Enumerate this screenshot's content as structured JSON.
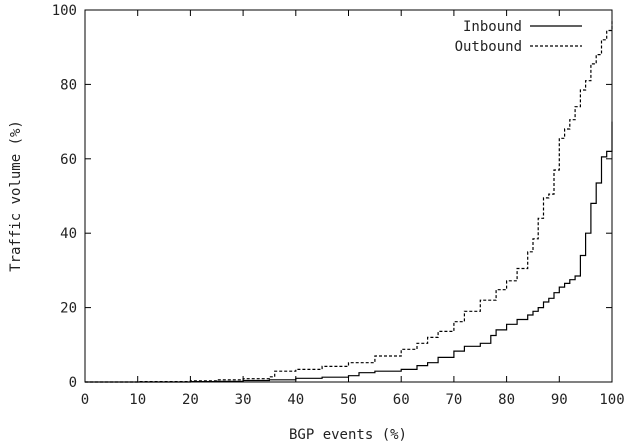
{
  "chart_data": {
    "type": "line",
    "title": "",
    "xlabel": "BGP events (%)",
    "ylabel": "Traffic volume (%)",
    "xlim": [
      0,
      100
    ],
    "ylim": [
      0,
      100
    ],
    "x_ticks": [
      "0",
      "10",
      "20",
      "30",
      "40",
      "50",
      "60",
      "70",
      "80",
      "90",
      "100"
    ],
    "y_ticks": [
      "0",
      "20",
      "40",
      "60",
      "80",
      "100"
    ],
    "legend_position": "top-right",
    "grid": false,
    "series": [
      {
        "name": "Inbound",
        "style": "solid",
        "x": [
          0,
          10,
          20,
          25,
          30,
          35,
          40,
          45,
          50,
          52,
          55,
          60,
          63,
          65,
          67,
          70,
          72,
          75,
          77,
          78,
          80,
          82,
          84,
          85,
          86,
          87,
          88,
          89,
          90,
          91,
          92,
          93,
          94,
          95,
          96,
          97,
          98,
          99,
          100
        ],
        "y": [
          0,
          0,
          0.1,
          0.2,
          0.4,
          0.6,
          1.0,
          1.3,
          1.7,
          2.5,
          2.9,
          3.4,
          4.4,
          5.2,
          6.6,
          8.3,
          9.6,
          10.4,
          12.5,
          14.0,
          15.5,
          16.8,
          18.0,
          19.0,
          20.0,
          21.5,
          22.5,
          24.0,
          25.5,
          26.5,
          27.5,
          28.5,
          34.0,
          40.0,
          48.0,
          53.5,
          60.5,
          62.0,
          70.0
        ]
      },
      {
        "name": "Outbound",
        "style": "dashed",
        "x": [
          0,
          10,
          20,
          25,
          30,
          35,
          36,
          40,
          45,
          50,
          55,
          60,
          63,
          65,
          67,
          70,
          72,
          75,
          78,
          80,
          82,
          84,
          85,
          86,
          87,
          88,
          89,
          90,
          91,
          92,
          93,
          94,
          95,
          96,
          97,
          98,
          99,
          100
        ],
        "y": [
          0,
          0.1,
          0.3,
          0.6,
          0.9,
          1.4,
          2.9,
          3.4,
          4.2,
          5.2,
          7.0,
          8.8,
          10.4,
          12.0,
          13.6,
          16.2,
          19.0,
          22.0,
          24.8,
          27.2,
          30.5,
          35.0,
          38.5,
          44.0,
          49.5,
          50.5,
          57.0,
          65.5,
          68.0,
          70.5,
          74.0,
          78.5,
          81.0,
          85.5,
          88.0,
          92.0,
          94.5,
          97.0
        ]
      }
    ]
  }
}
